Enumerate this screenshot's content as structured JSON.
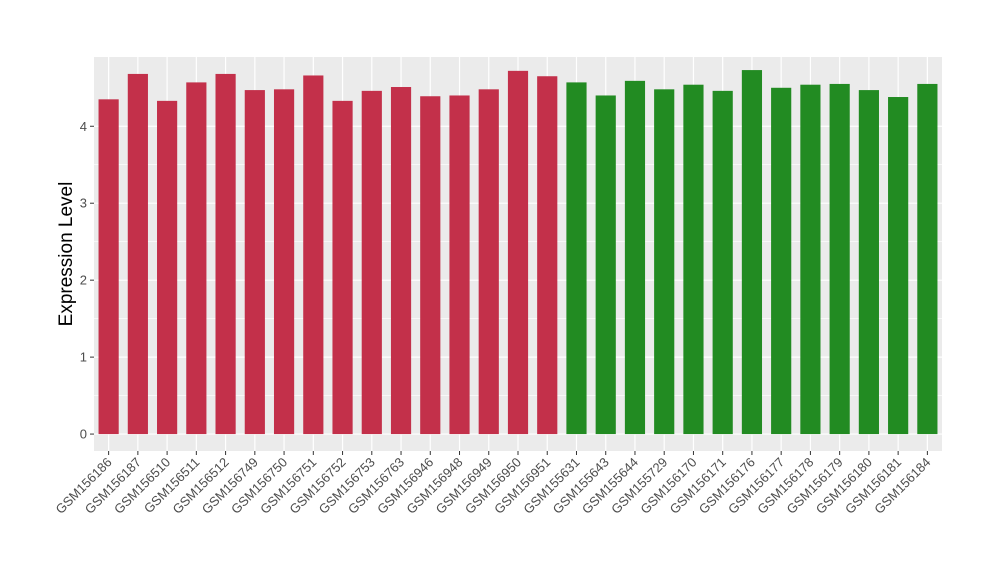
{
  "chart_data": {
    "type": "bar",
    "title": "",
    "xlabel": "",
    "ylabel": "Expression Level",
    "ylim": [
      -0.22,
      4.9
    ],
    "yticks": [
      0,
      1,
      2,
      3,
      4
    ],
    "grid": true,
    "categories": [
      "GSM156186",
      "GSM156187",
      "GSM156510",
      "GSM156511",
      "GSM156512",
      "GSM156749",
      "GSM156750",
      "GSM156751",
      "GSM156752",
      "GSM156753",
      "GSM156763",
      "GSM156946",
      "GSM156948",
      "GSM156949",
      "GSM156950",
      "GSM156951",
      "GSM155631",
      "GSM155643",
      "GSM155644",
      "GSM155729",
      "GSM156170",
      "GSM156171",
      "GSM156176",
      "GSM156177",
      "GSM156178",
      "GSM156179",
      "GSM156180",
      "GSM156181",
      "GSM156184"
    ],
    "values": [
      4.35,
      4.68,
      4.33,
      4.57,
      4.68,
      4.47,
      4.48,
      4.66,
      4.33,
      4.46,
      4.51,
      4.39,
      4.4,
      4.48,
      4.72,
      4.65,
      4.57,
      4.4,
      4.59,
      4.48,
      4.54,
      4.46,
      4.73,
      4.5,
      4.54,
      4.55,
      4.47,
      4.38,
      4.55
    ],
    "group_sizes": [
      16,
      13
    ],
    "colors": [
      "#C3304A",
      "#228B22"
    ],
    "panel_background": "#EBEBEB",
    "grid_color": "#FFFFFF"
  }
}
